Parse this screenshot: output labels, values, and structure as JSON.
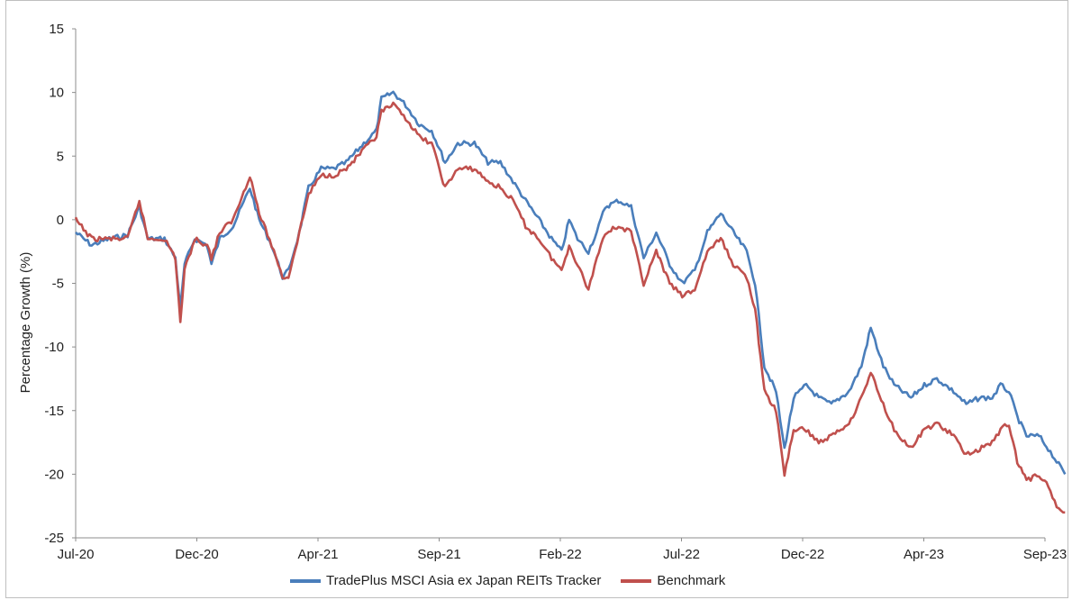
{
  "chart_data": {
    "type": "line",
    "title": "",
    "xlabel": "",
    "ylabel": "Percentage Growth (%)",
    "ylim": [
      -25,
      15
    ],
    "yticks": [
      15,
      10,
      5,
      0,
      -5,
      -10,
      -15,
      -20,
      -25
    ],
    "xticks": [
      "Jul-20",
      "Dec-20",
      "Apr-21",
      "Sep-21",
      "Feb-22",
      "Jul-22",
      "Dec-22",
      "Apr-23",
      "Sep-23"
    ],
    "xrange": [
      "2020-07",
      "2023-09"
    ],
    "grid": false,
    "legend_position": "bottom",
    "series": [
      {
        "name": "TradePlus MSCI Asia ex Japan REITs Tracker",
        "color": "#4a7ebb",
        "points": [
          [
            "2020-07-01",
            -1.0
          ],
          [
            "2020-07-20",
            -2.0
          ],
          [
            "2020-08-10",
            -1.5
          ],
          [
            "2020-09-01",
            -1.2
          ],
          [
            "2020-09-15",
            1.0
          ],
          [
            "2020-09-25",
            -1.5
          ],
          [
            "2020-10-15",
            -1.5
          ],
          [
            "2020-10-28",
            -3.0
          ],
          [
            "2020-11-03",
            -7.0
          ],
          [
            "2020-11-08",
            -3.5
          ],
          [
            "2020-11-20",
            -1.5
          ],
          [
            "2020-12-05",
            -2.0
          ],
          [
            "2020-12-10",
            -3.5
          ],
          [
            "2020-12-20",
            -1.5
          ],
          [
            "2021-01-05",
            -0.5
          ],
          [
            "2021-01-25",
            2.5
          ],
          [
            "2021-02-05",
            0.0
          ],
          [
            "2021-02-20",
            -2.0
          ],
          [
            "2021-03-05",
            -4.5
          ],
          [
            "2021-03-12",
            -4.0
          ],
          [
            "2021-03-25",
            -1.0
          ],
          [
            "2021-04-05",
            2.5
          ],
          [
            "2021-04-20",
            4.0
          ],
          [
            "2021-05-05",
            4.0
          ],
          [
            "2021-05-20",
            4.5
          ],
          [
            "2021-06-10",
            6.0
          ],
          [
            "2021-06-25",
            7.0
          ],
          [
            "2021-07-01",
            9.5
          ],
          [
            "2021-07-15",
            10.0
          ],
          [
            "2021-07-30",
            9.0
          ],
          [
            "2021-08-15",
            7.5
          ],
          [
            "2021-08-30",
            7.0
          ],
          [
            "2021-09-15",
            4.5
          ],
          [
            "2021-09-30",
            6.0
          ],
          [
            "2021-10-20",
            6.0
          ],
          [
            "2021-11-05",
            4.5
          ],
          [
            "2021-11-20",
            4.5
          ],
          [
            "2021-12-05",
            3.0
          ],
          [
            "2021-12-20",
            1.5
          ],
          [
            "2022-01-05",
            0.0
          ],
          [
            "2022-01-20",
            -1.5
          ],
          [
            "2022-02-01",
            -2.5
          ],
          [
            "2022-02-10",
            0.0
          ],
          [
            "2022-02-20",
            -1.5
          ],
          [
            "2022-03-05",
            -2.5
          ],
          [
            "2022-03-15",
            -1.0
          ],
          [
            "2022-03-25",
            1.0
          ],
          [
            "2022-04-10",
            1.5
          ],
          [
            "2022-04-25",
            1.0
          ],
          [
            "2022-05-10",
            -3.0
          ],
          [
            "2022-05-25",
            -1.0
          ],
          [
            "2022-06-10",
            -3.5
          ],
          [
            "2022-06-25",
            -5.0
          ],
          [
            "2022-07-10",
            -4.0
          ],
          [
            "2022-07-25",
            -1.0
          ],
          [
            "2022-08-10",
            0.5
          ],
          [
            "2022-08-25",
            -1.0
          ],
          [
            "2022-09-10",
            -2.5
          ],
          [
            "2022-09-20",
            -5.0
          ],
          [
            "2022-10-01",
            -11.5
          ],
          [
            "2022-10-15",
            -13.5
          ],
          [
            "2022-10-25",
            -18.0
          ],
          [
            "2022-11-05",
            -14.0
          ],
          [
            "2022-11-20",
            -13.0
          ],
          [
            "2022-12-05",
            -14.0
          ],
          [
            "2022-12-20",
            -14.5
          ],
          [
            "2023-01-10",
            -13.5
          ],
          [
            "2023-01-25",
            -11.5
          ],
          [
            "2023-02-05",
            -8.5
          ],
          [
            "2023-02-20",
            -11.5
          ],
          [
            "2023-03-05",
            -13.0
          ],
          [
            "2023-03-25",
            -14.0
          ],
          [
            "2023-04-10",
            -13.0
          ],
          [
            "2023-04-25",
            -12.5
          ],
          [
            "2023-05-15",
            -13.5
          ],
          [
            "2023-05-30",
            -14.5
          ],
          [
            "2023-06-15",
            -14.0
          ],
          [
            "2023-06-30",
            -14.0
          ],
          [
            "2023-07-10",
            -13.0
          ],
          [
            "2023-07-20",
            -13.5
          ],
          [
            "2023-07-30",
            -15.5
          ],
          [
            "2023-08-10",
            -17.0
          ],
          [
            "2023-08-25",
            -17.0
          ],
          [
            "2023-09-05",
            -18.0
          ],
          [
            "2023-09-15",
            -19.0
          ],
          [
            "2023-09-25",
            -20.0
          ]
        ]
      },
      {
        "name": "Benchmark",
        "color": "#c0504d",
        "points": [
          [
            "2020-07-01",
            0.0
          ],
          [
            "2020-07-20",
            -1.5
          ],
          [
            "2020-08-10",
            -1.5
          ],
          [
            "2020-09-01",
            -1.5
          ],
          [
            "2020-09-15",
            1.5
          ],
          [
            "2020-09-25",
            -1.5
          ],
          [
            "2020-10-15",
            -1.5
          ],
          [
            "2020-10-28",
            -3.0
          ],
          [
            "2020-11-03",
            -8.0
          ],
          [
            "2020-11-08",
            -4.0
          ],
          [
            "2020-11-20",
            -1.5
          ],
          [
            "2020-12-05",
            -2.0
          ],
          [
            "2020-12-10",
            -3.0
          ],
          [
            "2020-12-20",
            -1.0
          ],
          [
            "2021-01-05",
            0.0
          ],
          [
            "2021-01-25",
            3.5
          ],
          [
            "2021-02-05",
            0.5
          ],
          [
            "2021-02-20",
            -2.0
          ],
          [
            "2021-03-05",
            -4.5
          ],
          [
            "2021-03-12",
            -4.5
          ],
          [
            "2021-03-25",
            -1.0
          ],
          [
            "2021-04-05",
            2.0
          ],
          [
            "2021-04-20",
            3.5
          ],
          [
            "2021-05-05",
            3.5
          ],
          [
            "2021-05-20",
            4.0
          ],
          [
            "2021-06-10",
            5.5
          ],
          [
            "2021-06-25",
            6.5
          ],
          [
            "2021-07-01",
            8.5
          ],
          [
            "2021-07-15",
            9.0
          ],
          [
            "2021-07-30",
            8.0
          ],
          [
            "2021-08-15",
            6.5
          ],
          [
            "2021-08-30",
            6.0
          ],
          [
            "2021-09-15",
            2.5
          ],
          [
            "2021-09-30",
            4.0
          ],
          [
            "2021-10-20",
            4.0
          ],
          [
            "2021-11-05",
            3.0
          ],
          [
            "2021-11-20",
            2.5
          ],
          [
            "2021-12-05",
            1.5
          ],
          [
            "2021-12-20",
            -0.5
          ],
          [
            "2022-01-05",
            -1.5
          ],
          [
            "2022-01-20",
            -3.0
          ],
          [
            "2022-02-01",
            -4.0
          ],
          [
            "2022-02-10",
            -2.0
          ],
          [
            "2022-02-20",
            -3.5
          ],
          [
            "2022-03-05",
            -5.5
          ],
          [
            "2022-03-15",
            -3.0
          ],
          [
            "2022-03-25",
            -1.0
          ],
          [
            "2022-04-10",
            -0.5
          ],
          [
            "2022-04-25",
            -1.0
          ],
          [
            "2022-05-10",
            -5.0
          ],
          [
            "2022-05-25",
            -2.5
          ],
          [
            "2022-06-10",
            -5.0
          ],
          [
            "2022-06-25",
            -6.0
          ],
          [
            "2022-07-10",
            -5.5
          ],
          [
            "2022-07-25",
            -2.5
          ],
          [
            "2022-08-10",
            -1.5
          ],
          [
            "2022-08-25",
            -3.5
          ],
          [
            "2022-09-10",
            -4.5
          ],
          [
            "2022-09-20",
            -7.0
          ],
          [
            "2022-10-01",
            -13.5
          ],
          [
            "2022-10-15",
            -15.0
          ],
          [
            "2022-10-25",
            -20.0
          ],
          [
            "2022-11-05",
            -16.5
          ],
          [
            "2022-11-20",
            -16.5
          ],
          [
            "2022-12-05",
            -17.5
          ],
          [
            "2022-12-20",
            -17.0
          ],
          [
            "2023-01-10",
            -16.0
          ],
          [
            "2023-01-25",
            -14.0
          ],
          [
            "2023-02-05",
            -12.0
          ],
          [
            "2023-02-20",
            -14.5
          ],
          [
            "2023-03-05",
            -16.5
          ],
          [
            "2023-03-25",
            -18.0
          ],
          [
            "2023-04-10",
            -16.5
          ],
          [
            "2023-04-25",
            -16.0
          ],
          [
            "2023-05-15",
            -17.0
          ],
          [
            "2023-05-30",
            -18.5
          ],
          [
            "2023-06-15",
            -18.0
          ],
          [
            "2023-06-30",
            -17.5
          ],
          [
            "2023-07-10",
            -16.5
          ],
          [
            "2023-07-20",
            -16.0
          ],
          [
            "2023-07-30",
            -19.0
          ],
          [
            "2023-08-10",
            -20.5
          ],
          [
            "2023-08-25",
            -20.0
          ],
          [
            "2023-09-05",
            -21.0
          ],
          [
            "2023-09-15",
            -22.5
          ],
          [
            "2023-09-25",
            -23.0
          ]
        ]
      }
    ]
  }
}
